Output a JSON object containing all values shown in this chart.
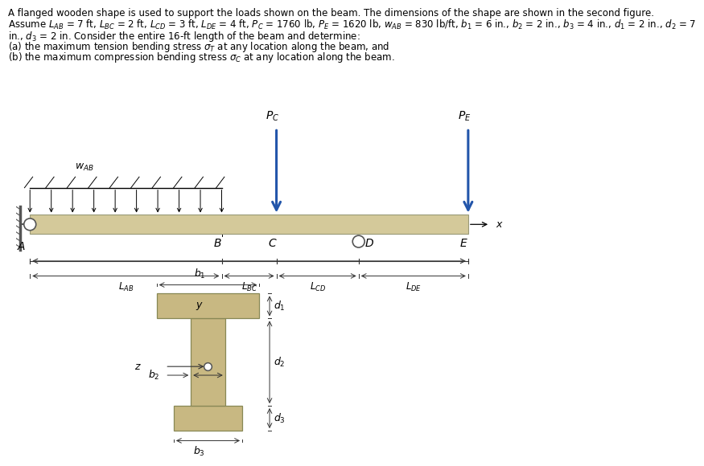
{
  "beam_color": "#d4c99a",
  "arrow_color": "#2255aa",
  "support_color": "#555555",
  "dim_color": "#333333",
  "flange_color": "#c8b882",
  "flange_edge": "#888855",
  "text_lines": [
    "A flanged wooden shape is used to support the loads shown on the beam. The dimensions of the shape are shown in the second figure.",
    "Assume LAB = 7 ft, LBC = 2 ft, LCD = 3 ft, LDE = 4 ft, Pc = 1760 lb, PE = 1620 lb, wAB = 830 lb/ft, b1 = 6 in., b2 = 2 in., b3 = 4 in., d1 = 2 in., d2 = 7",
    "in., d3 = 2 in. Consider the entire 16-ft length of the beam and determine:",
    "(a) the maximum tension bending stress σT at any location along the beam, and",
    "(b) the maximum compression bending stress σc at any location along the beam."
  ]
}
